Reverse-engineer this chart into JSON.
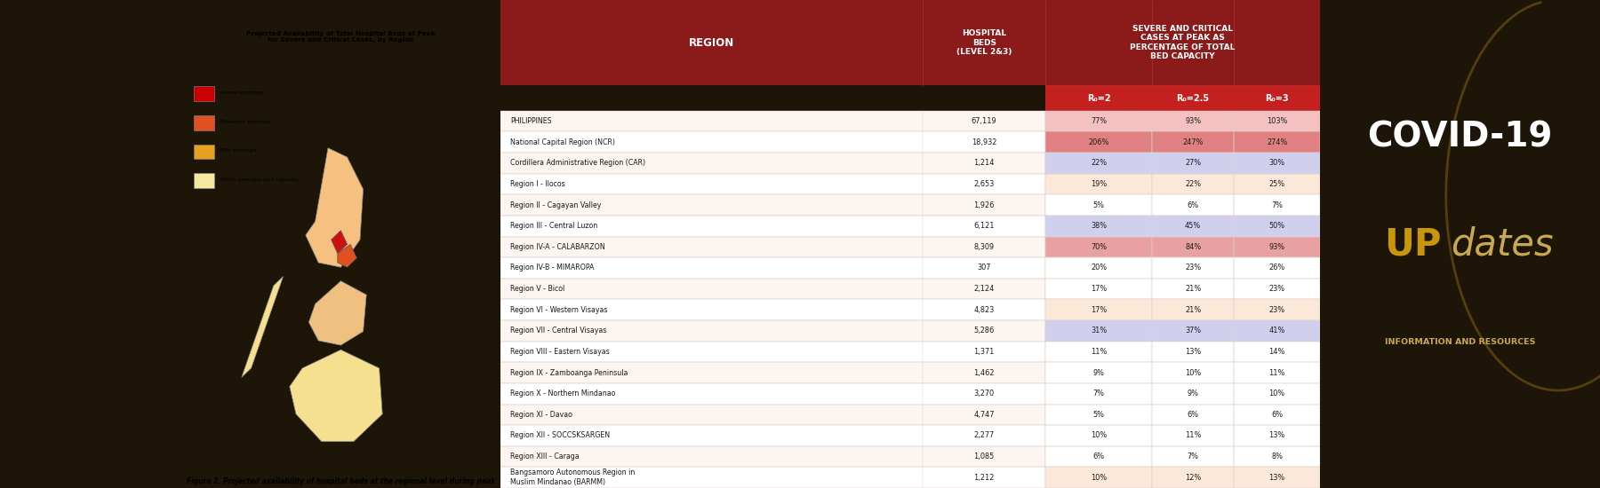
{
  "fig_caption": "Figure 2. Projected availability of hospital beds at the regional level during peak",
  "map_title": "Projected Availability of Total Hospital Beds at Peak\nfor Severe and Critical Cases, by Region",
  "legend_items": [
    "Severe shortage",
    "Moderate shortage",
    "Mild shortage",
    "Within available bed capacity"
  ],
  "legend_colors": [
    "#cc0000",
    "#e05020",
    "#e8a020",
    "#f5e6a0"
  ],
  "sub_header_r0": [
    "R₀=2",
    "R₀=2.5",
    "R₀=3"
  ],
  "header_bg": "#8B1A1A",
  "subheader_bg": "#c42020",
  "table_data": [
    {
      "region": "PHILIPPINES",
      "beds": "67,119",
      "r2": "77%",
      "r2_5": "93%",
      "r3": "103%",
      "row_color": "#f5c0c0"
    },
    {
      "region": "National Capital Region (NCR)",
      "beds": "18,932",
      "r2": "206%",
      "r2_5": "247%",
      "r3": "274%",
      "row_color": "#e08080"
    },
    {
      "region": "Cordillera Administrative Region (CAR)",
      "beds": "1,214",
      "r2": "22%",
      "r2_5": "27%",
      "r3": "30%",
      "row_color": "#d0d0ee"
    },
    {
      "region": "Region I - Ilocos",
      "beds": "2,653",
      "r2": "19%",
      "r2_5": "22%",
      "r3": "25%",
      "row_color": "#fce8d8"
    },
    {
      "region": "Region II - Cagayan Valley",
      "beds": "1,926",
      "r2": "5%",
      "r2_5": "6%",
      "r3": "7%",
      "row_color": "#ffffff"
    },
    {
      "region": "Region III - Central Luzon",
      "beds": "6,121",
      "r2": "38%",
      "r2_5": "45%",
      "r3": "50%",
      "row_color": "#d0d0ee"
    },
    {
      "region": "Region IV-A - CALABARZON",
      "beds": "8,309",
      "r2": "70%",
      "r2_5": "84%",
      "r3": "93%",
      "row_color": "#e8a0a0"
    },
    {
      "region": "Region IV-B - MIMAROPA",
      "beds": "307",
      "r2": "20%",
      "r2_5": "23%",
      "r3": "26%",
      "row_color": "#ffffff"
    },
    {
      "region": "Region V - Bicol",
      "beds": "2,124",
      "r2": "17%",
      "r2_5": "21%",
      "r3": "23%",
      "row_color": "#ffffff"
    },
    {
      "region": "Region VI - Western Visayas",
      "beds": "4,823",
      "r2": "17%",
      "r2_5": "21%",
      "r3": "23%",
      "row_color": "#fce8d8"
    },
    {
      "region": "Region VII - Central Visayas",
      "beds": "5,286",
      "r2": "31%",
      "r2_5": "37%",
      "r3": "41%",
      "row_color": "#d0d0ee"
    },
    {
      "region": "Region VIII - Eastern Visayas",
      "beds": "1,371",
      "r2": "11%",
      "r2_5": "13%",
      "r3": "14%",
      "row_color": "#ffffff"
    },
    {
      "region": "Region IX - Zamboanga Peninsula",
      "beds": "1,462",
      "r2": "9%",
      "r2_5": "10%",
      "r3": "11%",
      "row_color": "#ffffff"
    },
    {
      "region": "Region X - Northern Mindanao",
      "beds": "3,270",
      "r2": "7%",
      "r2_5": "9%",
      "r3": "10%",
      "row_color": "#ffffff"
    },
    {
      "region": "Region XI - Davao",
      "beds": "4,747",
      "r2": "5%",
      "r2_5": "6%",
      "r3": "6%",
      "row_color": "#ffffff"
    },
    {
      "region": "Region XII - SOCCSKSARGEN",
      "beds": "2,277",
      "r2": "10%",
      "r2_5": "11%",
      "r3": "13%",
      "row_color": "#ffffff"
    },
    {
      "region": "Region XIII - Caraga",
      "beds": "1,085",
      "r2": "6%",
      "r2_5": "7%",
      "r3": "8%",
      "row_color": "#ffffff"
    },
    {
      "region": "Bangsamoro Autonomous Region in\nMuslim Mindanao (BARMM)",
      "beds": "1,212",
      "r2": "10%",
      "r2_5": "12%",
      "r3": "13%",
      "row_color": "#fce8d8"
    }
  ],
  "covid_text": "COVID-19",
  "up_text": "UP",
  "dates_text": "dates",
  "info_text": "INFORMATION AND RESOURCES",
  "header_text_color": "#ffffff",
  "table_text_color": "#1a1a1a",
  "covid_color": "#ffffff",
  "up_color": "#c8960a",
  "dates_color": "#C8A850",
  "info_color": "#C8A850",
  "dark_bg": "#1c1508",
  "map_border_color": "#cccccc"
}
